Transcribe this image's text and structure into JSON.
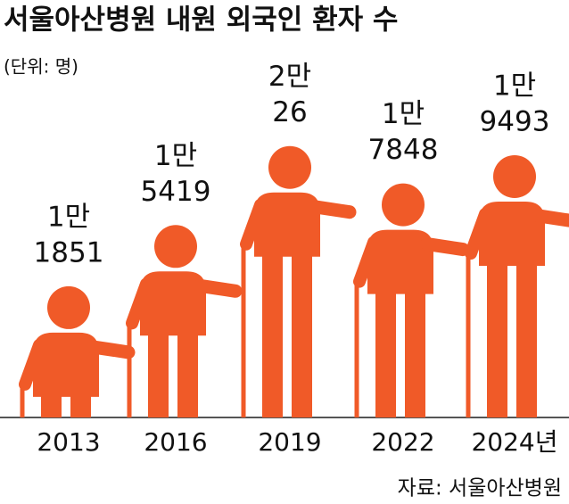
{
  "chart_data": {
    "type": "pictogram",
    "title": "서울아산병원 내원 외국인 환자 수",
    "subtitle": "(단위: 명)",
    "source": "자료: 서울아산병원",
    "categories": [
      "2013",
      "2016",
      "2019",
      "2022",
      "2024년"
    ],
    "values": [
      11851,
      15419,
      20026,
      17848,
      19493
    ],
    "value_labels": [
      [
        "1만",
        "1851"
      ],
      [
        "1만",
        "5419"
      ],
      [
        "2만",
        "26"
      ],
      [
        "1만",
        "7848"
      ],
      [
        "1만",
        "9493"
      ]
    ],
    "color": "#f05a28",
    "ylim": [
      4200,
      21000
    ]
  }
}
